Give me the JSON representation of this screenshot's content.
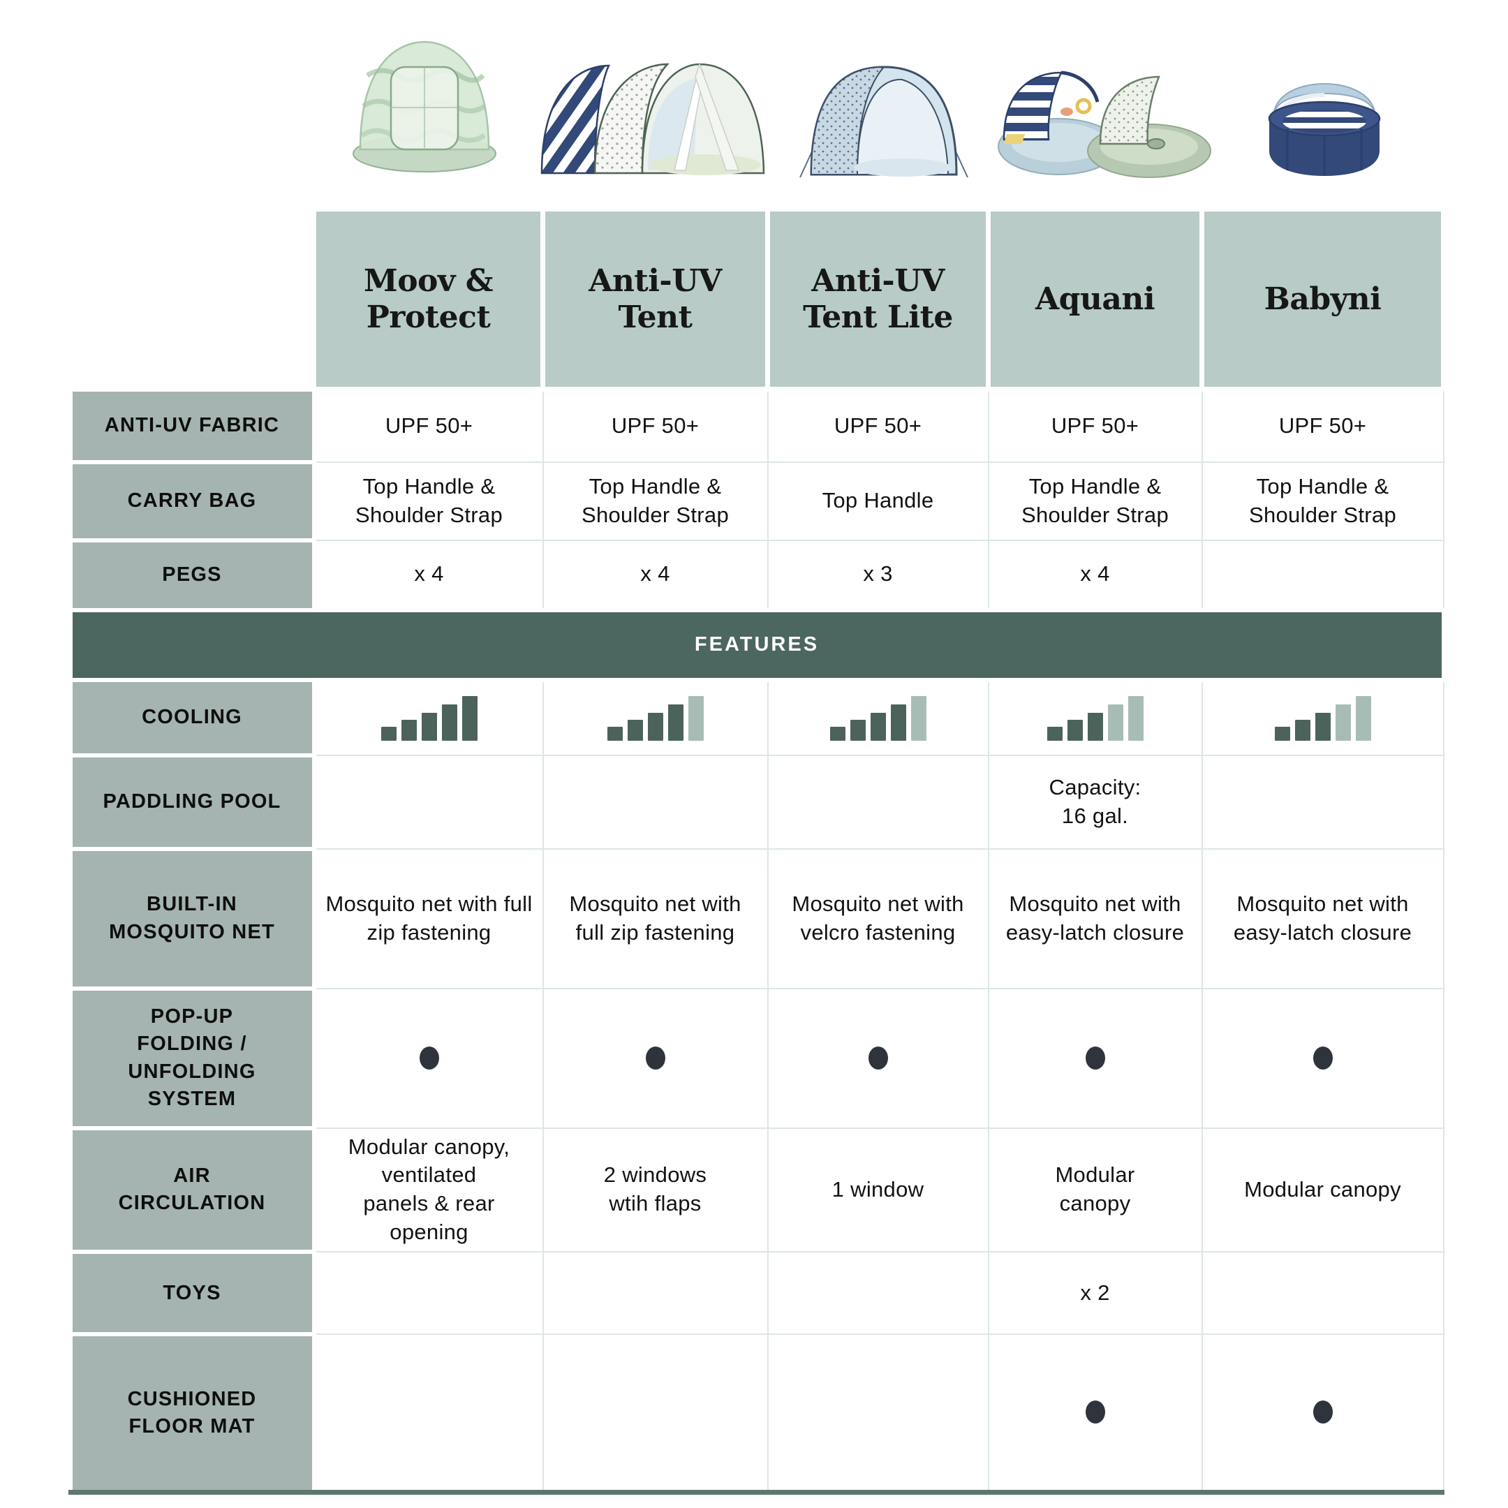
{
  "colors": {
    "header-bg": "#b8cbc6",
    "label-bg": "#a5b4b0",
    "features-bg": "#4c6660",
    "bar-filled": "#4c635c",
    "bar-empty": "#a7bcb5",
    "dot": "#2e333c",
    "grid-line": "#dde7e3",
    "bottom-line": "#5d776d"
  },
  "section_header": "FEATURES",
  "row_labels": {
    "anti_uv_fabric": "ANTI-UV FABRIC",
    "carry_bag": "CARRY BAG",
    "pegs": "PEGS",
    "cooling": "COOLING",
    "paddling_pool": "PADDLING POOL",
    "mosquito_net": "BUILT-IN\nMOSQUITO NET",
    "popup_system": "POP-UP\nFOLDING /\nUNFOLDING\nSYSTEM",
    "air_circulation": "AIR\nCIRCULATION",
    "toys": "TOYS",
    "floor_mat": "CUSHIONED\nFLOOR MAT"
  },
  "products": [
    {
      "name": "Moov &\nProtect",
      "photo_icon": "green-dome-tent-photo",
      "anti_uv_fabric": "UPF 50+",
      "carry_bag": "Top Handle & Shoulder Strap",
      "pegs": "x 4",
      "cooling": {
        "filled": 5,
        "total": 5
      },
      "paddling_pool": "",
      "mosquito_net": "Mosquito net with full zip fastening",
      "popup_system": true,
      "air_circulation": "Modular canopy,\nventilated\npanels & rear\nopening",
      "toys": "",
      "floor_mat": false
    },
    {
      "name": "Anti-UV\nTent",
      "photo_icon": "striped-popup-tent-photo",
      "anti_uv_fabric": "UPF 50+",
      "carry_bag": "Top Handle & Shoulder Strap",
      "pegs": "x 4",
      "cooling": {
        "filled": 4,
        "total": 5
      },
      "paddling_pool": "",
      "mosquito_net": "Mosquito net with full zip fastening",
      "popup_system": true,
      "air_circulation": "2 windows\nwtih flaps",
      "toys": "",
      "floor_mat": false
    },
    {
      "name": "Anti-UV\nTent Lite",
      "photo_icon": "blue-arch-tent-photo",
      "anti_uv_fabric": "UPF 50+",
      "carry_bag": "Top Handle",
      "pegs": "x 3",
      "cooling": {
        "filled": 4,
        "total": 5
      },
      "paddling_pool": "",
      "mosquito_net": "Mosquito net with velcro fastening",
      "popup_system": true,
      "air_circulation": "1 window",
      "toys": "",
      "floor_mat": false
    },
    {
      "name": "Aquani",
      "photo_icon": "tent-with-paddling-pool-photo",
      "anti_uv_fabric": "UPF 50+",
      "carry_bag": "Top Handle & Shoulder Strap",
      "pegs": "x 4",
      "cooling": {
        "filled": 3,
        "total": 5
      },
      "paddling_pool": "Capacity:\n16 gal.",
      "mosquito_net": "Mosquito net with easy-latch closure",
      "popup_system": true,
      "air_circulation": "Modular\ncanopy",
      "toys": "x 2",
      "floor_mat": true
    },
    {
      "name": "Babyni",
      "photo_icon": "navy-round-cot-photo",
      "anti_uv_fabric": "UPF 50+",
      "carry_bag": "Top Handle & Shoulder Strap",
      "pegs": "",
      "cooling": {
        "filled": 3,
        "total": 5
      },
      "paddling_pool": "",
      "mosquito_net": "Mosquito net with easy-latch closure",
      "popup_system": true,
      "air_circulation": "Modular canopy",
      "toys": "",
      "floor_mat": true
    }
  ],
  "chart_data": {
    "type": "table",
    "title": "",
    "columns": [
      "Moov & Protect",
      "Anti-UV Tent",
      "Anti-UV Tent Lite",
      "Aquani",
      "Babyni"
    ],
    "section_header_between_rows": "FEATURES (after PEGS row)",
    "rows": [
      {
        "label": "ANTI-UV FABRIC",
        "values": [
          "UPF 50+",
          "UPF 50+",
          "UPF 50+",
          "UPF 50+",
          "UPF 50+"
        ]
      },
      {
        "label": "CARRY BAG",
        "values": [
          "Top Handle & Shoulder Strap",
          "Top Handle & Shoulder Strap",
          "Top Handle",
          "Top Handle & Shoulder Strap",
          "Top Handle & Shoulder Strap"
        ]
      },
      {
        "label": "PEGS",
        "values": [
          "x 4",
          "x 4",
          "x 3",
          "x 4",
          ""
        ]
      },
      {
        "label": "COOLING (bars filled out of 5)",
        "values": [
          5,
          4,
          4,
          3,
          3
        ]
      },
      {
        "label": "PADDLING POOL",
        "values": [
          "",
          "",
          "",
          "Capacity: 16 gal.",
          ""
        ]
      },
      {
        "label": "BUILT-IN MOSQUITO NET",
        "values": [
          "Mosquito net with full zip fastening",
          "Mosquito net with full zip fastening",
          "Mosquito net with velcro fastening",
          "Mosquito net with easy-latch closure",
          "Mosquito net with easy-latch closure"
        ]
      },
      {
        "label": "POP-UP FOLDING / UNFOLDING SYSTEM",
        "values": [
          "yes",
          "yes",
          "yes",
          "yes",
          "yes"
        ]
      },
      {
        "label": "AIR CIRCULATION",
        "values": [
          "Modular canopy, ventilated panels & rear opening",
          "2 windows wtih flaps",
          "1 window",
          "Modular canopy",
          "Modular canopy"
        ]
      },
      {
        "label": "TOYS",
        "values": [
          "",
          "",
          "",
          "x 2",
          ""
        ]
      },
      {
        "label": "CUSHIONED FLOOR MAT",
        "values": [
          "",
          "",
          "",
          "yes",
          "yes"
        ]
      }
    ]
  }
}
